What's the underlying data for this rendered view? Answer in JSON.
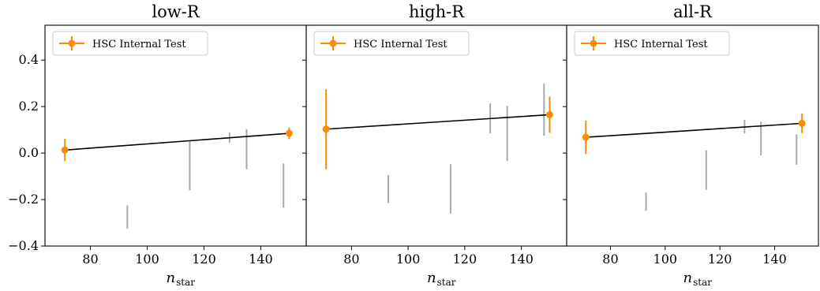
{
  "chart_data": [
    {
      "type": "scatter",
      "title": "low-R",
      "xlabel": "n",
      "xlabel_sub": "star",
      "ylabel": "",
      "xlim": [
        64,
        156
      ],
      "ylim": [
        -0.4,
        0.55
      ],
      "xticks": [
        80,
        100,
        120,
        140
      ],
      "yticks": [
        -0.4,
        -0.2,
        0.0,
        0.2,
        0.4
      ],
      "legend": {
        "label": "HSC Internal Test",
        "placement": "top-left"
      },
      "fit_line": {
        "x": [
          71,
          150
        ],
        "y": [
          0.013,
          0.085
        ]
      },
      "highlight": {
        "name": "HSC Internal Test",
        "x": [
          71,
          150
        ],
        "y": [
          0.013,
          0.085
        ],
        "yerr": [
          0.048,
          0.025
        ]
      },
      "background": {
        "x": [
          93,
          115,
          129,
          135,
          148
        ],
        "ylow": [
          -0.325,
          -0.16,
          0.045,
          -0.07,
          -0.235
        ],
        "yhigh": [
          -0.225,
          0.055,
          0.088,
          0.103,
          -0.045
        ]
      }
    },
    {
      "type": "scatter",
      "title": "high-R",
      "xlabel": "n",
      "xlabel_sub": "star",
      "ylabel": "",
      "xlim": [
        64,
        156
      ],
      "ylim": [
        -0.4,
        0.55
      ],
      "xticks": [
        80,
        100,
        120,
        140
      ],
      "yticks": [
        -0.4,
        -0.2,
        0.0,
        0.2,
        0.4
      ],
      "legend": {
        "label": "HSC Internal Test",
        "placement": "top-left"
      },
      "fit_line": {
        "x": [
          71,
          150
        ],
        "y": [
          0.103,
          0.165
        ]
      },
      "highlight": {
        "name": "HSC Internal Test",
        "x": [
          71,
          150
        ],
        "y": [
          0.103,
          0.165
        ],
        "yerr": [
          0.172,
          0.078
        ]
      },
      "background": {
        "x": [
          93,
          115,
          129,
          135,
          148
        ],
        "ylow": [
          -0.215,
          -0.26,
          0.085,
          -0.035,
          0.075
        ],
        "yhigh": [
          -0.095,
          -0.048,
          0.213,
          0.203,
          0.298
        ]
      }
    },
    {
      "type": "scatter",
      "title": "all-R",
      "xlabel": "n",
      "xlabel_sub": "star",
      "ylabel": "",
      "xlim": [
        64,
        156
      ],
      "ylim": [
        -0.4,
        0.55
      ],
      "xticks": [
        80,
        100,
        120,
        140
      ],
      "yticks": [
        -0.4,
        -0.2,
        0.0,
        0.2,
        0.4
      ],
      "legend": {
        "label": "HSC Internal Test",
        "placement": "top-left"
      },
      "fit_line": {
        "x": [
          71,
          150
        ],
        "y": [
          0.068,
          0.128
        ]
      },
      "highlight": {
        "name": "HSC Internal Test",
        "x": [
          71,
          150
        ],
        "y": [
          0.068,
          0.128
        ],
        "yerr": [
          0.072,
          0.042
        ]
      },
      "background": {
        "x": [
          93,
          115,
          129,
          135,
          148
        ],
        "ylow": [
          -0.248,
          -0.158,
          0.085,
          -0.01,
          -0.05
        ],
        "yhigh": [
          -0.17,
          0.012,
          0.143,
          0.135,
          0.08
        ]
      }
    }
  ],
  "colors": {
    "highlight": "#ff8c00",
    "background": "#a9a9a9",
    "fit_line": "#000000",
    "axes": "#000000"
  }
}
